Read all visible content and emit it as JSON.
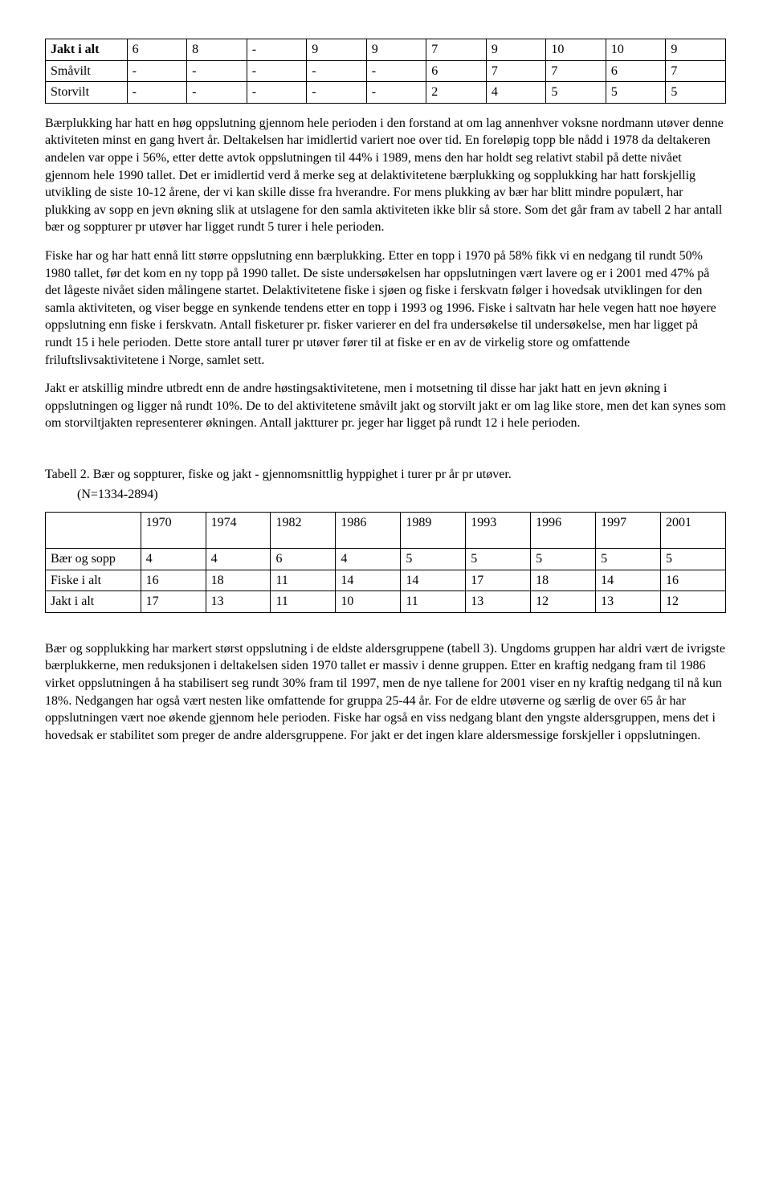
{
  "table1": {
    "col_widths_pct": [
      12,
      8.8,
      8.8,
      8.8,
      8.8,
      8.8,
      8.8,
      8.8,
      8.8,
      8.8,
      8.8
    ],
    "rows": [
      {
        "label": "Jakt i alt",
        "label_bold": true,
        "cells": [
          "6",
          "8",
          "-",
          "9",
          "9",
          "7",
          "9",
          "10",
          "10",
          "9"
        ]
      },
      {
        "label": "Småvilt",
        "label_bold": false,
        "cells": [
          "-",
          "-",
          "-",
          "-",
          "-",
          "6",
          "7",
          "7",
          "6",
          "7"
        ]
      },
      {
        "label": "Storvilt",
        "label_bold": false,
        "cells": [
          "-",
          "-",
          "-",
          "-",
          "-",
          "2",
          "4",
          "5",
          "5",
          "5"
        ]
      }
    ]
  },
  "paragraphs": [
    "Bærplukking har hatt en høg oppslutning gjennom hele perioden i den forstand at om lag annenhver voksne nordmann utøver denne aktiviteten minst en gang hvert år. Deltakelsen har imidlertid variert noe over tid. En foreløpig topp ble nådd i 1978 da deltakeren andelen var oppe i 56%, etter dette avtok oppslutningen til 44% i 1989, mens den har holdt seg relativt stabil på dette nivået gjennom hele 1990 tallet. Det er imidlertid verd å merke seg at delaktivitetene bærplukking og sopplukking har hatt forskjellig utvikling de siste 10-12 årene, der vi kan skille disse fra hverandre. For mens plukking av bær har blitt mindre populært, har plukking av sopp en jevn økning slik at utslagene for den samla aktiviteten ikke blir så store. Som det går fram av tabell 2 har antall bær og soppturer pr utøver har ligget rundt 5 turer i hele perioden.",
    "Fiske har og har hatt ennå litt større oppslutning enn bærplukking. Etter en topp i 1970 på 58% fikk vi en nedgang til rundt 50% 1980 tallet, før det kom en ny topp på 1990 tallet. De siste undersøkelsen har oppslutningen vært lavere og er i 2001 med 47% på det lågeste nivået siden målingene startet. Delaktivitetene fiske i sjøen og fiske i ferskvatn følger i hovedsak utviklingen for den samla aktiviteten, og viser begge en synkende tendens etter en topp i 1993 og 1996. Fiske i saltvatn har hele vegen hatt noe høyere oppslutning enn fiske i ferskvatn. Antall fisketurer pr. fisker varierer en del fra undersøkelse til undersøkelse, men har ligget på rundt 15 i hele perioden. Dette store antall turer pr utøver fører til at fiske er en av de virkelig store og omfattende friluftslivsaktivitetene i Norge, samlet sett.",
    "Jakt er atskillig mindre utbredt enn de andre høstingsaktivitetene, men i motsetning til disse har jakt hatt en jevn økning i oppslutningen og ligger nå rundt 10%. De to del aktivitetene småvilt jakt og storvilt jakt er om lag like store, men det kan synes som om storviltjakten representerer økningen. Antall jaktturer pr. jeger har ligget på rundt 12 i hele perioden."
  ],
  "caption": "Tabell 2. Bær og soppturer, fiske og jakt - gjennomsnittlig hyppighet i turer pr år pr utøver.",
  "caption_sub": "(N=1334-2894)",
  "table2": {
    "years": [
      "1970",
      "1974",
      "1982",
      "1986",
      "1989",
      "1993",
      "1996",
      "1997",
      "2001"
    ],
    "rows": [
      {
        "label": "Bær og sopp",
        "cells": [
          "4",
          "4",
          "6",
          "4",
          "5",
          "5",
          "5",
          "5",
          "5"
        ]
      },
      {
        "label": "Fiske i alt",
        "cells": [
          "16",
          "18",
          "11",
          "14",
          "14",
          "17",
          "18",
          "14",
          "16"
        ]
      },
      {
        "label": "Jakt i alt",
        "cells": [
          "17",
          "13",
          "11",
          "10",
          "11",
          "13",
          "12",
          "13",
          "12"
        ]
      }
    ],
    "col_widths_pct": [
      14,
      9.55,
      9.55,
      9.55,
      9.55,
      9.55,
      9.55,
      9.55,
      9.55,
      9.55
    ]
  },
  "closing_paragraph": "Bær og sopplukking har markert størst oppslutning i de eldste aldersgruppene (tabell 3). Ungdoms gruppen har aldri vært de ivrigste bærplukkerne, men reduksjonen i deltakelsen siden 1970 tallet er massiv i denne gruppen. Etter en kraftig nedgang fram til 1986 virket oppslutningen å ha stabilisert seg rundt 30% fram til 1997, men de nye tallene for 2001 viser en ny kraftig nedgang til nå kun 18%. Nedgangen har også vært nesten like omfattende for gruppa 25-44 år. For de eldre utøverne og særlig de over 65 år har oppslutningen vært noe økende gjennom hele perioden. Fiske har også en viss nedgang blant den yngste aldersgruppen, mens det i hovedsak er stabilitet som preger de andre aldersgruppene. For jakt er det ingen klare aldersmessige forskjeller i oppslutningen."
}
